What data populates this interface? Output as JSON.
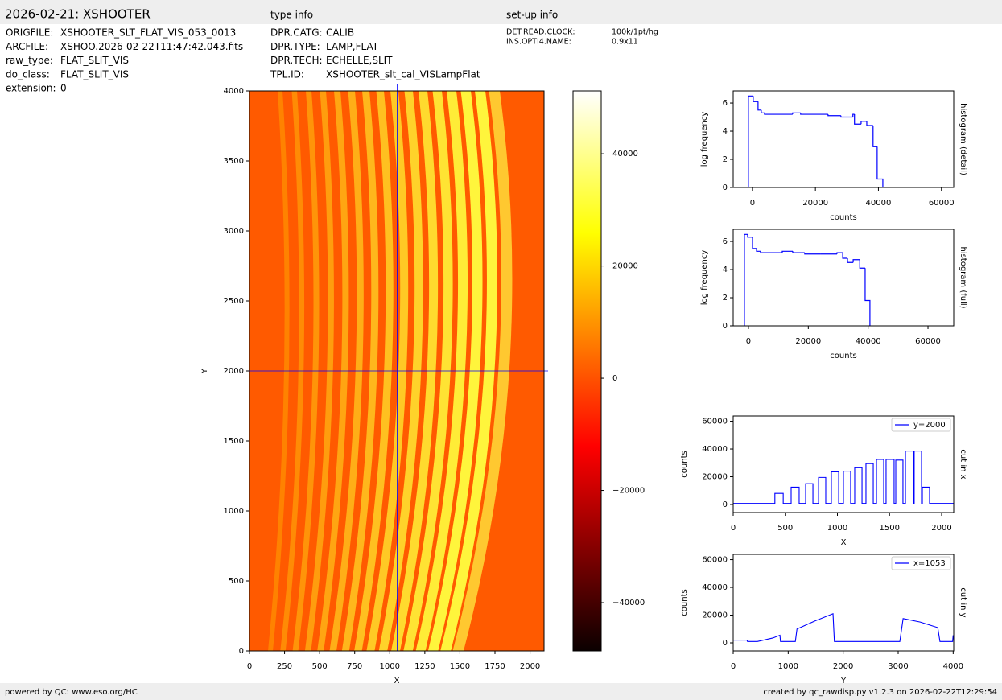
{
  "header": {
    "title": "2026-02-21: XSHOOTER",
    "type_info_heading": "type info",
    "setup_info_heading": "set-up info"
  },
  "file_info": [
    {
      "label": "ORIGFILE:",
      "value": "XSHOOTER_SLT_FLAT_VIS_053_0013"
    },
    {
      "label": "ARCFILE:",
      "value": "XSHOO.2026-02-22T11:47:42.043.fits"
    },
    {
      "label": "raw_type:",
      "value": "FLAT_SLIT_VIS"
    },
    {
      "label": "do_class:",
      "value": "FLAT_SLIT_VIS"
    },
    {
      "label": "extension:",
      "value": 0
    }
  ],
  "type_info": [
    {
      "label": "DPR.CATG:",
      "value": "CALIB"
    },
    {
      "label": "DPR.TYPE:",
      "value": "LAMP,FLAT"
    },
    {
      "label": "DPR.TECH:",
      "value": "ECHELLE,SLIT"
    },
    {
      "label": "TPL.ID:",
      "value": "XSHOOTER_slt_cal_VISLampFlat"
    }
  ],
  "setup_info": [
    {
      "label": "DET.READ.CLOCK:",
      "value": "100k/1pt/hg"
    },
    {
      "label": "INS.OPTI4.NAME:",
      "value": "0.9x11"
    }
  ],
  "chart_data": [
    {
      "type": "image",
      "xlabel": "X",
      "ylabel": "Y",
      "xlim": [
        0,
        2100
      ],
      "ylim": [
        0,
        4000
      ],
      "xticks": [
        0,
        250,
        500,
        750,
        1000,
        1250,
        1500,
        1750,
        2000
      ],
      "yticks": [
        0,
        500,
        1000,
        1500,
        2000,
        2500,
        3000,
        3500,
        4000
      ],
      "crosshair": {
        "x": 1053,
        "y": 2000,
        "color": "#0000ff"
      },
      "colorbar": {
        "clim": [
          -48600,
          51200
        ],
        "ticks": [
          {
            "value": -40000,
            "label": "−40000"
          },
          {
            "value": -20000,
            "label": "−20000"
          },
          0,
          20000,
          40000
        ]
      }
    },
    {
      "type": "histogram",
      "title": "histogram (detail)",
      "xlabel": "counts",
      "ylabel": "log frequency",
      "color": "#0000ff",
      "xlim": [
        -6100,
        63900
      ],
      "ylim": [
        0,
        6.86
      ],
      "xticks": [
        0,
        20000,
        40000,
        60000
      ],
      "yticks": [
        0,
        2,
        4,
        6
      ],
      "bins": [
        -1277,
        255,
        1790,
        2810,
        3830,
        12770,
        15300,
        24000,
        28100,
        31900,
        32400,
        34500,
        36300,
        38300,
        39600,
        41400
      ],
      "values": [
        6.5,
        6.1,
        5.5,
        5.3,
        5.2,
        5.3,
        5.2,
        5.1,
        5.0,
        5.2,
        4.5,
        4.7,
        4.4,
        2.9,
        0.6
      ]
    },
    {
      "type": "histogram",
      "title": "histogram (full)",
      "xlabel": "counts",
      "ylabel": "log frequency",
      "color": "#0000ff",
      "xlim": [
        -5100,
        68600
      ],
      "ylim": [
        0,
        6.86
      ],
      "xticks": [
        0,
        20000,
        40000,
        60000
      ],
      "yticks": [
        0,
        2,
        4,
        6
      ],
      "bins": [
        -1350,
        -270,
        1350,
        2700,
        4040,
        11300,
        14800,
        18800,
        24200,
        29600,
        31500,
        33100,
        35000,
        37200,
        39000,
        40600
      ],
      "values": [
        6.5,
        6.3,
        5.5,
        5.3,
        5.2,
        5.3,
        5.2,
        5.1,
        5.1,
        5.2,
        4.8,
        4.5,
        4.7,
        4.1,
        1.8
      ]
    },
    {
      "type": "line",
      "title": "cut in x",
      "xlabel": "X",
      "ylabel": "counts",
      "legend": "upper right",
      "xlim": [
        0,
        2116
      ],
      "ylim": [
        -5800,
        63800
      ],
      "xticks": [
        0,
        500,
        1000,
        1500,
        2000
      ],
      "yticks": [
        0,
        20000,
        40000,
        60000
      ],
      "x": [
        0,
        400,
        400,
        480,
        480,
        556,
        556,
        633,
        633,
        695,
        695,
        765,
        765,
        819,
        819,
        888,
        888,
        942,
        942,
        1012,
        1012,
        1058,
        1058,
        1127,
        1127,
        1166,
        1166,
        1236,
        1236,
        1274,
        1274,
        1344,
        1344,
        1375,
        1375,
        1444,
        1444,
        1467,
        1467,
        1544,
        1544,
        1560,
        1560,
        1629,
        1629,
        1653,
        1653,
        1730,
        1730,
        1737,
        1737,
        1807,
        1807,
        1815,
        1815,
        1884,
        1884,
        2116
      ],
      "series": [
        {
          "name": "y=2000",
          "color": "#0000ff",
          "values": [
            800,
            800,
            8000,
            8000,
            800,
            800,
            12500,
            12500,
            800,
            800,
            15000,
            15000,
            800,
            800,
            19500,
            19500,
            800,
            800,
            23500,
            23500,
            800,
            800,
            24000,
            24000,
            800,
            800,
            26500,
            26500,
            800,
            800,
            29500,
            29500,
            800,
            800,
            32500,
            32500,
            800,
            800,
            32500,
            32500,
            800,
            800,
            32000,
            32000,
            800,
            800,
            38500,
            38500,
            800,
            800,
            38500,
            38500,
            800,
            800,
            12500,
            12500,
            800,
            800
          ]
        }
      ]
    },
    {
      "type": "line",
      "title": "cut in y",
      "xlabel": "Y",
      "ylabel": "counts",
      "legend": "upper right",
      "xlim": [
        0,
        4010
      ],
      "ylim": [
        -5800,
        63800
      ],
      "xticks": [
        0,
        1000,
        2000,
        3000,
        4000
      ],
      "yticks": [
        0,
        20000,
        40000,
        60000
      ],
      "x": [
        0,
        250,
        260,
        440,
        720,
        850,
        860,
        1130,
        1160,
        1500,
        1815,
        1840,
        3030,
        3090,
        3400,
        3720,
        3760,
        3990,
        4000
      ],
      "series": [
        {
          "name": "x=1053",
          "color": "#0000ff",
          "values": [
            2000,
            2000,
            1000,
            1000,
            3500,
            5500,
            1000,
            1000,
            10000,
            16000,
            21000,
            1000,
            1000,
            17500,
            15000,
            11000,
            1000,
            1000,
            5500
          ]
        }
      ]
    }
  ],
  "footer": {
    "left": "powered by QC: www.eso.org/HC",
    "right": "created by qc_rawdisp.py v1.2.3 on 2026-02-22T12:29:54"
  }
}
